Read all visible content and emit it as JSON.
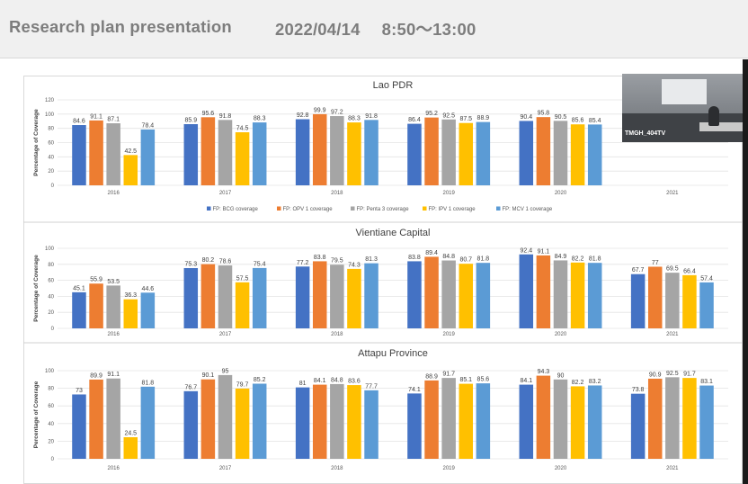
{
  "header": {
    "title": "Research plan presentation",
    "datetime": "2022/04/14　 8:50～13:00"
  },
  "camera": {
    "label": "TMGH_404TV"
  },
  "colors": [
    "#4472c4",
    "#ed7d31",
    "#a5a5a5",
    "#ffc000",
    "#5b9bd5"
  ],
  "legend": [
    "FP: BCG coverage",
    "FP: OPV 1 coverage",
    "FP: Penta 3 coverage",
    "FP: IPV 1 coverage",
    "FP: MCV 1 coverage"
  ],
  "chart_data": [
    {
      "type": "bar",
      "title": "Lao PDR",
      "ylabel": "Percentage of Coverage",
      "ylim": [
        0,
        120
      ],
      "yticks": [
        0,
        20,
        40,
        60,
        80,
        100,
        120
      ],
      "categories": [
        "2016",
        "2017",
        "2018",
        "2019",
        "2020",
        "2021"
      ],
      "series": [
        {
          "name": "FP: BCG coverage",
          "values": [
            84.6,
            85.9,
            92.8,
            86.4,
            90.4,
            null
          ]
        },
        {
          "name": "FP: OPV 1 coverage",
          "values": [
            91.1,
            95.6,
            99.9,
            95.2,
            95.8,
            null
          ]
        },
        {
          "name": "FP: Penta 3 coverage",
          "values": [
            87.1,
            91.8,
            97.2,
            92.5,
            90.5,
            null
          ]
        },
        {
          "name": "FP: IPV 1 coverage",
          "values": [
            42.5,
            74.5,
            88.3,
            87.5,
            85.6,
            null
          ]
        },
        {
          "name": "FP: MCV 1 coverage",
          "values": [
            78.4,
            88.3,
            91.8,
            88.9,
            85.4,
            null
          ]
        }
      ],
      "legend_position": "bottom"
    },
    {
      "type": "bar",
      "title": "Vientiane Capital",
      "ylabel": "Percentage of Coverage",
      "ylim": [
        0,
        100
      ],
      "yticks": [
        0,
        20,
        40,
        60,
        80,
        100
      ],
      "categories": [
        "2016",
        "2017",
        "2018",
        "2019",
        "2020",
        "2021"
      ],
      "series": [
        {
          "values": [
            45.1,
            75.3,
            77.2,
            83.8,
            92.4,
            67.7
          ]
        },
        {
          "values": [
            55.9,
            80.2,
            83.8,
            89.4,
            91.1,
            77
          ]
        },
        {
          "values": [
            53.5,
            78.6,
            79.5,
            84.8,
            84.9,
            69.5
          ]
        },
        {
          "values": [
            36.3,
            57.5,
            74.3,
            80.7,
            82.2,
            66.4
          ]
        },
        {
          "values": [
            44.6,
            75.4,
            81.3,
            81.8,
            81.8,
            57.4
          ]
        }
      ]
    },
    {
      "type": "bar",
      "title": "Attapu Province",
      "ylabel": "Percentage of Coverage",
      "ylim": [
        0,
        100
      ],
      "yticks": [
        0,
        20,
        40,
        60,
        80,
        100
      ],
      "categories": [
        "2016",
        "2017",
        "2018",
        "2019",
        "2020",
        "2021"
      ],
      "series": [
        {
          "values": [
            73,
            76.7,
            81,
            74.1,
            84.1,
            73.8
          ]
        },
        {
          "values": [
            89.9,
            90.1,
            84.1,
            88.9,
            94.3,
            90.9
          ]
        },
        {
          "values": [
            91.1,
            95,
            84.8,
            91.7,
            90,
            92.5
          ]
        },
        {
          "values": [
            24.5,
            79.7,
            83.6,
            85.1,
            82.2,
            91.7
          ]
        },
        {
          "values": [
            81.8,
            85.2,
            77.7,
            85.6,
            83.2,
            83.1
          ]
        }
      ]
    }
  ]
}
